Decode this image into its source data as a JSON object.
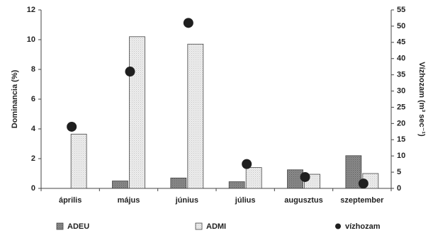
{
  "chart_data": {
    "type": "bar",
    "categories": [
      "április",
      "május",
      "június",
      "július",
      "augusztus",
      "szeptember"
    ],
    "series": [
      {
        "name": "ADEU",
        "type": "bar",
        "axis": "left",
        "color": "#7f7f7f",
        "values": [
          0.0,
          0.5,
          0.7,
          0.45,
          1.25,
          2.2
        ]
      },
      {
        "name": "ADMI",
        "type": "bar",
        "axis": "left",
        "color": "#e3e3e3",
        "values": [
          3.65,
          10.2,
          9.7,
          1.4,
          0.95,
          1.0
        ]
      },
      {
        "name": "vízhozam",
        "type": "scatter",
        "axis": "right",
        "color": "#1f1f1f",
        "values": [
          19.0,
          36.0,
          51.0,
          7.5,
          3.5,
          1.5
        ]
      }
    ],
    "ylabel": "Dominancia (%)",
    "ylabel_right": "Vízhozam (m³ sec⁻¹)",
    "ylim": [
      0,
      12
    ],
    "ylim_right": [
      0,
      55
    ],
    "yticks": [
      "0",
      "2",
      "4",
      "6",
      "8",
      "10",
      "12"
    ],
    "yticks_right": [
      "0",
      "5",
      "10",
      "15",
      "20",
      "25",
      "30",
      "35",
      "40",
      "45",
      "50",
      "55"
    ],
    "legend_position": "bottom",
    "grid": false
  }
}
